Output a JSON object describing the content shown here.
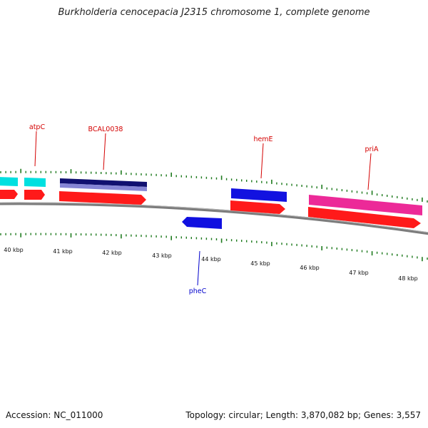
{
  "title": "Burkholderia cenocepacia J2315 chromosome 1, complete genome",
  "footer": {
    "accession": "Accession: NC_011000",
    "summary": "Topology: circular; Length: 3,870,082 bp; Genes: 3,557"
  },
  "colors": {
    "cyan_gene": "#00e5e5",
    "navy_gene": "#101070",
    "lavender_gene": "#8a8ad8",
    "red_gene": "#ff1a1a",
    "blue_gene": "#1010e0",
    "pink_gene": "#ee2a9a",
    "backbone": "#808080",
    "tick": "#1e7a1e",
    "label_red": "#d40000",
    "label_blue": "#0000cc"
  },
  "scale": {
    "unit": "kbp",
    "labels": [
      "40 kbp",
      "41 kbp",
      "42 kbp",
      "43 kbp",
      "44 kbp",
      "45 kbp",
      "46 kbp",
      "47 kbp",
      "48 kbp"
    ]
  },
  "genes": [
    {
      "label": "atpC",
      "kbp": 40.28,
      "strand": "forward",
      "color": "#d40000"
    },
    {
      "label": "BCAL0038",
      "kbp": 41.33,
      "strand": "forward",
      "color": "#d40000"
    },
    {
      "label": "hemE",
      "kbp": 44.88,
      "strand": "forward",
      "color": "#d40000"
    },
    {
      "label": "priA",
      "kbp": 47.0,
      "strand": "forward",
      "color": "#d40000"
    },
    {
      "label": "pheC",
      "kbp": 43.77,
      "strand": "reverse",
      "color": "#0000cc"
    }
  ]
}
